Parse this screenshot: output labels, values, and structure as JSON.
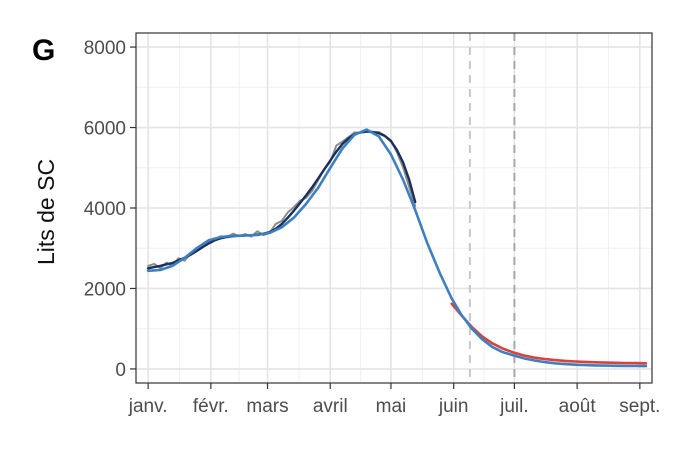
{
  "panel_label": "G",
  "chart_data": {
    "type": "line",
    "title": "",
    "xlabel": "",
    "ylabel": "Lits de SC",
    "x_unit": "day of year 2021",
    "xlim": [
      -6,
      249
    ],
    "ylim": [
      -350,
      8350
    ],
    "x_ticks": [
      {
        "label": "janv.",
        "value": 0
      },
      {
        "label": "févr.",
        "value": 31
      },
      {
        "label": "mars",
        "value": 59
      },
      {
        "label": "avril",
        "value": 90
      },
      {
        "label": "mai",
        "value": 120
      },
      {
        "label": "juin",
        "value": 151
      },
      {
        "label": "juil.",
        "value": 181
      },
      {
        "label": "août",
        "value": 212
      },
      {
        "label": "sept.",
        "value": 243
      }
    ],
    "y_ticks": [
      0,
      2000,
      4000,
      6000,
      8000
    ],
    "y_tick_labels": [
      "0",
      "2000",
      "4000",
      "6000",
      "8000"
    ],
    "grid": true,
    "vlines": [
      {
        "x": 159,
        "style": "dashed",
        "color": "#c8c8c8"
      },
      {
        "x": 181,
        "style": "dashed",
        "color": "#a8a8a8"
      }
    ],
    "series": [
      {
        "color": "#8c8c8c",
        "x": [
          0,
          3,
          6,
          9,
          12,
          15,
          18,
          21,
          24,
          27,
          30,
          33,
          36,
          39,
          42,
          45,
          48,
          51,
          54,
          57,
          60,
          63,
          66,
          69,
          72,
          75,
          78,
          81,
          84,
          87,
          90,
          93,
          96,
          99,
          102,
          105,
          108,
          111,
          114,
          117,
          120,
          123,
          126,
          129,
          132
        ],
        "y": [
          2560,
          2610,
          2500,
          2640,
          2570,
          2750,
          2690,
          2880,
          2960,
          3100,
          3180,
          3230,
          3300,
          3280,
          3360,
          3300,
          3350,
          3290,
          3420,
          3330,
          3380,
          3600,
          3680,
          3890,
          4020,
          4180,
          4250,
          4420,
          4690,
          4960,
          5150,
          5550,
          5650,
          5760,
          5880,
          5870,
          5950,
          5880,
          5890,
          5800,
          5680,
          5380,
          5010,
          4520,
          4050
        ]
      },
      {
        "color": "#1b2f5e",
        "x": [
          0,
          3,
          6,
          9,
          12,
          15,
          18,
          21,
          24,
          27,
          30,
          33,
          36,
          39,
          42,
          45,
          48,
          51,
          54,
          57,
          60,
          63,
          66,
          69,
          72,
          75,
          78,
          81,
          84,
          87,
          90,
          93,
          96,
          99,
          102,
          105,
          108,
          111,
          114,
          117,
          120,
          123,
          126,
          129,
          132
        ],
        "y": [
          2500,
          2530,
          2560,
          2600,
          2630,
          2700,
          2760,
          2840,
          2930,
          3030,
          3120,
          3200,
          3250,
          3280,
          3300,
          3310,
          3320,
          3320,
          3340,
          3360,
          3400,
          3480,
          3600,
          3760,
          3930,
          4120,
          4310,
          4510,
          4730,
          4960,
          5180,
          5400,
          5590,
          5730,
          5830,
          5880,
          5900,
          5890,
          5860,
          5790,
          5660,
          5440,
          5130,
          4700,
          4150
        ]
      },
      {
        "color": "#d9423b",
        "x": [
          150,
          155,
          160,
          165,
          170,
          175,
          181,
          186,
          191,
          196,
          201,
          206,
          211,
          216,
          221,
          226,
          231,
          236,
          241,
          246
        ],
        "y": [
          1620,
          1320,
          1040,
          810,
          640,
          510,
          400,
          330,
          280,
          245,
          220,
          200,
          185,
          175,
          165,
          158,
          152,
          148,
          144,
          140
        ]
      },
      {
        "color": "#3d80c2",
        "x": [
          0,
          6,
          12,
          18,
          24,
          30,
          36,
          42,
          48,
          54,
          60,
          66,
          72,
          78,
          84,
          90,
          96,
          102,
          108,
          114,
          120,
          126,
          132,
          138,
          144,
          150,
          155,
          160,
          165,
          170,
          175,
          181,
          186,
          191,
          196,
          201,
          206,
          211,
          216,
          221,
          226,
          231,
          236,
          241,
          246
        ],
        "y": [
          2440,
          2460,
          2560,
          2760,
          3000,
          3200,
          3280,
          3310,
          3320,
          3330,
          3380,
          3520,
          3760,
          4100,
          4500,
          5000,
          5480,
          5820,
          5950,
          5780,
          5330,
          4700,
          3950,
          3120,
          2400,
          1750,
          1330,
          1000,
          740,
          550,
          420,
          330,
          260,
          210,
          170,
          140,
          120,
          105,
          95,
          88,
          82,
          78,
          75,
          72,
          70
        ]
      }
    ]
  }
}
